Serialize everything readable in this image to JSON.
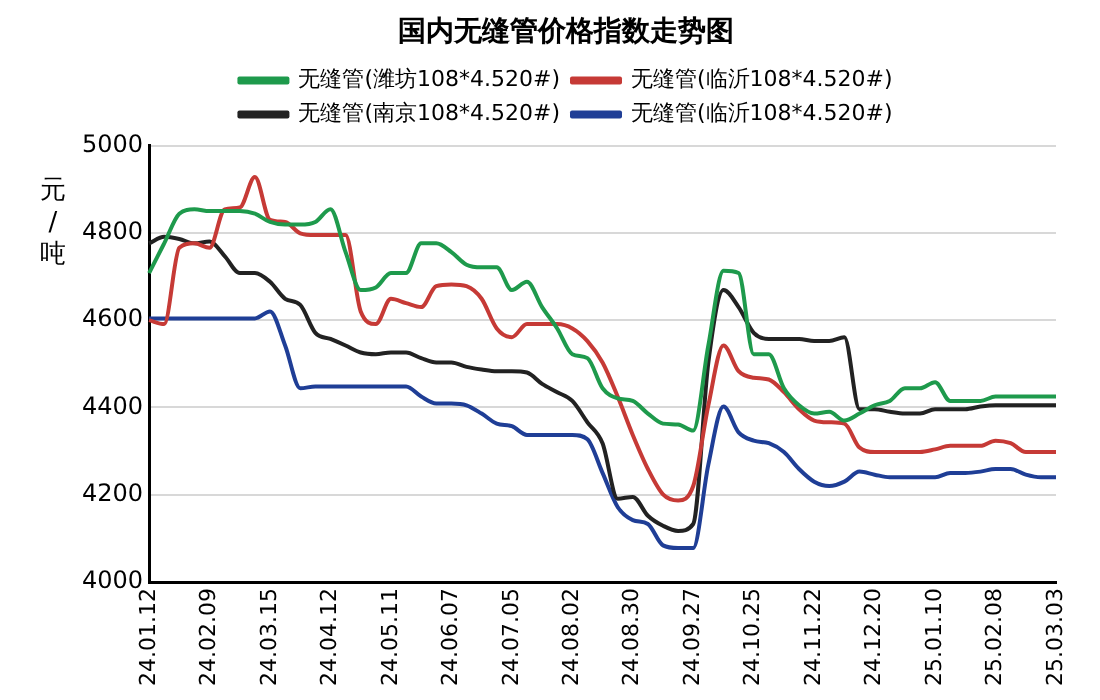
{
  "chart_data": {
    "type": "line",
    "title": "国内无缝管价格指数走势图",
    "ylabel": "元/吨",
    "categories": [
      "24.01.12",
      null,
      null,
      null,
      "24.02.09",
      null,
      null,
      null,
      "24.03.15",
      null,
      null,
      null,
      "24.04.12",
      null,
      null,
      null,
      "24.05.11",
      null,
      null,
      null,
      "24.06.07",
      null,
      null,
      null,
      "24.07.05",
      null,
      null,
      null,
      "24.08.02",
      null,
      null,
      null,
      "24.08.30",
      null,
      null,
      null,
      "24.09.27",
      null,
      null,
      null,
      "24.10.25",
      null,
      null,
      null,
      "24.11.22",
      null,
      null,
      null,
      "24.12.20",
      null,
      null,
      null,
      "25.01.10",
      null,
      null,
      null,
      "25.02.08",
      null,
      null,
      null,
      "25.03.03"
    ],
    "series": [
      {
        "name": "无缝管(潍坊108*4.520#)",
        "color": "#1e9a4c",
        "values": [
          4708,
          4776,
          4844,
          4854,
          4850,
          4850,
          4850,
          4844,
          4825,
          4819,
          4819,
          4825,
          4854,
          4756,
          4669,
          4675,
          4708,
          4708,
          4776,
          4776,
          4756,
          4727,
          4721,
          4721,
          4669,
          4688,
          4630,
          4581,
          4522,
          4513,
          4444,
          4421,
          4415,
          4386,
          4363,
          4361,
          4347,
          4542,
          4713,
          4708,
          4522,
          4522,
          4444,
          4405,
          4386,
          4390,
          4370,
          4386,
          4405,
          4415,
          4444,
          4444,
          4458,
          4415,
          4415,
          4415,
          4425,
          4425,
          4425,
          4425,
          4425
        ]
      },
      {
        "name": "无缝管(临沂108*4.520#)",
        "color": "#c63a36",
        "values": [
          4600,
          4591,
          4766,
          4776,
          4766,
          4854,
          4858,
          4928,
          4830,
          4825,
          4799,
          4795,
          4795,
          4795,
          4620,
          4591,
          4649,
          4639,
          4630,
          4678,
          4682,
          4678,
          4649,
          4581,
          4561,
          4591,
          4591,
          4591,
          4581,
          4552,
          4503,
          4425,
          4337,
          4259,
          4201,
          4187,
          4220,
          4405,
          4542,
          4483,
          4468,
          4464,
          4435,
          4396,
          4370,
          4366,
          4363,
          4308,
          4298,
          4298,
          4298,
          4298,
          4304,
          4312,
          4312,
          4312,
          4324,
          4318,
          4298,
          4298,
          4298
        ]
      },
      {
        "name": "无缝管(南京108*4.520#)",
        "color": "#222222",
        "values": [
          4776,
          4791,
          4786,
          4776,
          4780,
          4747,
          4708,
          4708,
          4688,
          4649,
          4635,
          4571,
          4557,
          4542,
          4526,
          4522,
          4526,
          4526,
          4513,
          4503,
          4503,
          4493,
          4487,
          4483,
          4483,
          4480,
          4454,
          4435,
          4415,
          4366,
          4318,
          4191,
          4195,
          4152,
          4129,
          4117,
          4133,
          4503,
          4669,
          4630,
          4571,
          4557,
          4557,
          4557,
          4552,
          4552,
          4561,
          4396,
          4396,
          4390,
          4386,
          4386,
          4396,
          4396,
          4396,
          4402,
          4405,
          4405,
          4405,
          4405,
          4405
        ]
      },
      {
        "name": "无缝管(临沂108*4.520#)",
        "color": "#1f3e96",
        "values": [
          4604,
          4604,
          4604,
          4604,
          4604,
          4604,
          4604,
          4604,
          4620,
          4542,
          4444,
          4448,
          4448,
          4448,
          4448,
          4448,
          4448,
          4448,
          4425,
          4409,
          4409,
          4405,
          4386,
          4363,
          4357,
          4337,
          4337,
          4337,
          4337,
          4327,
          4250,
          4172,
          4142,
          4133,
          4084,
          4078,
          4078,
          4269,
          4402,
          4343,
          4324,
          4318,
          4298,
          4259,
          4230,
          4220,
          4230,
          4253,
          4246,
          4240,
          4240,
          4240,
          4240,
          4250,
          4250,
          4253,
          4259,
          4259,
          4246,
          4240,
          4240
        ]
      }
    ],
    "ylim": [
      4000,
      5000
    ],
    "yticks": [
      4000,
      4200,
      4400,
      4600,
      4800,
      5000
    ],
    "grid": "y",
    "legend": "top",
    "marker": "none",
    "line_style": "solid"
  }
}
